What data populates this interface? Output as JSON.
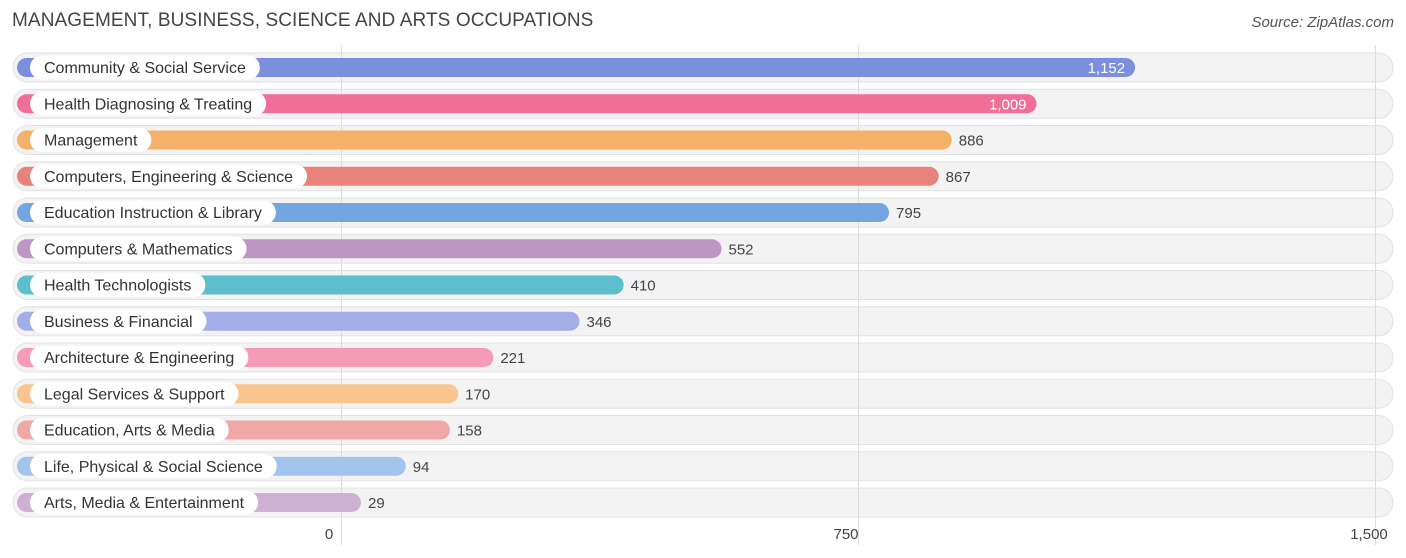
{
  "title": "MANAGEMENT, BUSINESS, SCIENCE AND ARTS OCCUPATIONS",
  "source": "Source: ZipAtlas.com",
  "chart_data": {
    "type": "bar",
    "orientation": "horizontal",
    "title": "MANAGEMENT, BUSINESS, SCIENCE AND ARTS OCCUPATIONS",
    "xlabel": "",
    "ylabel": "",
    "xlim": [
      0,
      1500
    ],
    "xticks": [
      0,
      750,
      1500
    ],
    "xtick_labels": [
      "0",
      "750",
      "1,500"
    ],
    "grid": true,
    "categories": [
      "Community & Social Service",
      "Health Diagnosing & Treating",
      "Management",
      "Computers, Engineering & Science",
      "Education Instruction & Library",
      "Computers & Mathematics",
      "Health Technologists",
      "Business & Financial",
      "Architecture & Engineering",
      "Legal Services & Support",
      "Education, Arts & Media",
      "Life, Physical & Social Science",
      "Arts, Media & Entertainment"
    ],
    "values": [
      1152,
      1009,
      886,
      867,
      795,
      552,
      410,
      346,
      221,
      170,
      158,
      94,
      29
    ],
    "value_labels": [
      "1,152",
      "1,009",
      "886",
      "867",
      "795",
      "552",
      "410",
      "346",
      "221",
      "170",
      "158",
      "94",
      "29"
    ],
    "colors": [
      "#7b8fdd",
      "#f06e98",
      "#f7b06a",
      "#e8827c",
      "#73a6e0",
      "#bd96c4",
      "#5cbfcb",
      "#a3aee8",
      "#f59ab7",
      "#f9c48e",
      "#efa8a5",
      "#a3c4ec",
      "#cdb0d3"
    ]
  }
}
